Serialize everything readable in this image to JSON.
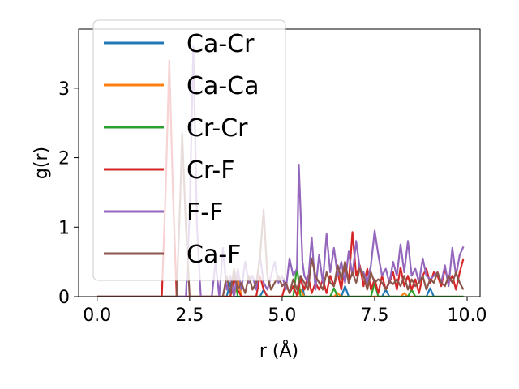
{
  "chart_data": {
    "type": "line",
    "xlabel": "r (Å)",
    "ylabel": "g(r)",
    "xlim": [
      -0.5,
      10.35
    ],
    "ylim": [
      0,
      3.85
    ],
    "xticks": [
      0.0,
      2.5,
      5.0,
      7.5,
      10.0
    ],
    "xtick_labels": [
      "0.0",
      "2.5",
      "5.0",
      "7.5",
      "10.0"
    ],
    "yticks": [
      0,
      1,
      2,
      3
    ],
    "ytick_labels": [
      "0",
      "1",
      "2",
      "3"
    ],
    "grid": false,
    "legend_position": "upper-left",
    "series": [
      {
        "name": "Ca-Cr",
        "color": "#1f77b4",
        "points": [
          [
            0,
            0
          ],
          [
            3.5,
            0
          ],
          [
            3.6,
            0.2
          ],
          [
            3.7,
            0
          ],
          [
            4.4,
            0
          ],
          [
            4.5,
            0.1
          ],
          [
            4.6,
            0
          ],
          [
            5.4,
            0
          ],
          [
            5.5,
            0.3
          ],
          [
            5.6,
            0
          ],
          [
            6.6,
            0
          ],
          [
            6.7,
            0.15
          ],
          [
            6.8,
            0
          ],
          [
            7.7,
            0
          ],
          [
            7.8,
            0.1
          ],
          [
            7.9,
            0
          ],
          [
            8.9,
            0
          ],
          [
            9.0,
            0.12
          ],
          [
            9.1,
            0
          ],
          [
            9.9,
            0
          ]
        ]
      },
      {
        "name": "Ca-Ca",
        "color": "#ff7f0e",
        "points": [
          [
            0,
            0
          ],
          [
            3.7,
            0
          ],
          [
            3.8,
            0.3
          ],
          [
            3.9,
            0
          ],
          [
            5.4,
            0
          ],
          [
            5.5,
            0.1
          ],
          [
            5.6,
            0
          ],
          [
            6.4,
            0
          ],
          [
            6.5,
            0.05
          ],
          [
            6.6,
            0
          ],
          [
            8.2,
            0
          ],
          [
            8.3,
            0.05
          ],
          [
            8.4,
            0
          ],
          [
            9.9,
            0
          ]
        ]
      },
      {
        "name": "Cr-Cr",
        "color": "#2ca02c",
        "points": [
          [
            0,
            0
          ],
          [
            3.6,
            0
          ],
          [
            3.7,
            0.35
          ],
          [
            3.8,
            0
          ],
          [
            5.3,
            0
          ],
          [
            5.4,
            0.42
          ],
          [
            5.5,
            0
          ],
          [
            6.3,
            0
          ],
          [
            6.4,
            0.12
          ],
          [
            6.5,
            0
          ],
          [
            7.4,
            0
          ],
          [
            7.5,
            0.2
          ],
          [
            7.6,
            0
          ],
          [
            8.4,
            0
          ],
          [
            8.5,
            0.1
          ],
          [
            8.6,
            0
          ],
          [
            9.9,
            0
          ]
        ]
      },
      {
        "name": "Cr-F",
        "color": "#d62728",
        "points": [
          [
            0,
            0
          ],
          [
            1.75,
            0
          ],
          [
            1.85,
            1.5
          ],
          [
            1.95,
            3.4
          ],
          [
            2.05,
            1.5
          ],
          [
            2.15,
            0
          ],
          [
            3.6,
            0
          ],
          [
            3.7,
            0.25
          ],
          [
            3.8,
            0.1
          ],
          [
            3.9,
            0
          ],
          [
            4.3,
            0
          ],
          [
            4.4,
            0.3
          ],
          [
            4.5,
            0.1
          ],
          [
            4.6,
            0
          ],
          [
            5.0,
            0
          ],
          [
            5.1,
            0.2
          ],
          [
            5.2,
            0.05
          ],
          [
            5.3,
            0.15
          ],
          [
            5.4,
            0.02
          ],
          [
            5.5,
            0.25
          ],
          [
            5.6,
            0.1
          ],
          [
            5.7,
            0.3
          ],
          [
            5.8,
            0.05
          ],
          [
            5.9,
            0.2
          ],
          [
            6.0,
            0.1
          ],
          [
            6.1,
            0.25
          ],
          [
            6.2,
            0.05
          ],
          [
            6.3,
            0.3
          ],
          [
            6.4,
            0.15
          ],
          [
            6.5,
            0.35
          ],
          [
            6.6,
            0.1
          ],
          [
            6.7,
            0.5
          ],
          [
            6.8,
            0.2
          ],
          [
            6.9,
            0.93
          ],
          [
            7.0,
            0.3
          ],
          [
            7.1,
            0.45
          ],
          [
            7.2,
            0.15
          ],
          [
            7.3,
            0.4
          ],
          [
            7.4,
            0.1
          ],
          [
            7.5,
            0.25
          ],
          [
            7.6,
            0.05
          ],
          [
            7.7,
            0.3
          ],
          [
            7.8,
            0.1
          ],
          [
            7.9,
            0.2
          ],
          [
            8.0,
            0.35
          ],
          [
            8.1,
            0.1
          ],
          [
            8.2,
            0.42
          ],
          [
            8.3,
            0.15
          ],
          [
            8.4,
            0.3
          ],
          [
            8.5,
            0.1
          ],
          [
            8.6,
            0.25
          ],
          [
            8.7,
            0.05
          ],
          [
            8.8,
            0.3
          ],
          [
            8.9,
            0.4
          ],
          [
            9.0,
            0.2
          ],
          [
            9.1,
            0.35
          ],
          [
            9.2,
            0.3
          ],
          [
            9.3,
            0.15
          ],
          [
            9.4,
            0.4
          ],
          [
            9.5,
            0.2
          ],
          [
            9.6,
            0.3
          ],
          [
            9.7,
            0.1
          ],
          [
            9.8,
            0.35
          ],
          [
            9.9,
            0.55
          ]
        ]
      },
      {
        "name": "F-F",
        "color": "#9467bd",
        "points": [
          [
            0,
            0
          ],
          [
            2.4,
            0
          ],
          [
            2.5,
            1.2
          ],
          [
            2.6,
            3.6
          ],
          [
            2.7,
            1.0
          ],
          [
            2.8,
            0
          ],
          [
            3.1,
            0
          ],
          [
            3.2,
            0.5
          ],
          [
            3.3,
            0
          ],
          [
            3.4,
            0.7
          ],
          [
            3.5,
            0.1
          ],
          [
            3.6,
            0.3
          ],
          [
            3.7,
            0
          ],
          [
            3.8,
            0.4
          ],
          [
            3.9,
            0.1
          ],
          [
            4.0,
            0.5
          ],
          [
            4.1,
            0.2
          ],
          [
            4.2,
            0.3
          ],
          [
            4.3,
            0.1
          ],
          [
            4.4,
            0.6
          ],
          [
            4.5,
            0.2
          ],
          [
            4.6,
            0.1
          ],
          [
            4.7,
            0.3
          ],
          [
            4.8,
            0.5
          ],
          [
            4.9,
            0.2
          ],
          [
            5.0,
            0.3
          ],
          [
            5.1,
            0.1
          ],
          [
            5.2,
            0.55
          ],
          [
            5.3,
            0.3
          ],
          [
            5.4,
            0.4
          ],
          [
            5.45,
            1.9
          ],
          [
            5.55,
            0.5
          ],
          [
            5.6,
            0.3
          ],
          [
            5.7,
            0.2
          ],
          [
            5.8,
            0.85
          ],
          [
            5.9,
            0.1
          ],
          [
            6.0,
            0.6
          ],
          [
            6.1,
            0.2
          ],
          [
            6.2,
            0.9
          ],
          [
            6.3,
            0.35
          ],
          [
            6.4,
            0.7
          ],
          [
            6.5,
            0.3
          ],
          [
            6.6,
            0.5
          ],
          [
            6.7,
            0.2
          ],
          [
            6.8,
            0.65
          ],
          [
            6.9,
            0.3
          ],
          [
            7.0,
            0.8
          ],
          [
            7.1,
            0.4
          ],
          [
            7.2,
            0.35
          ],
          [
            7.3,
            0.2
          ],
          [
            7.4,
            0.45
          ],
          [
            7.5,
            0.95
          ],
          [
            7.6,
            0.6
          ],
          [
            7.7,
            0.3
          ],
          [
            7.8,
            0.4
          ],
          [
            7.9,
            0.2
          ],
          [
            8.0,
            0.5
          ],
          [
            8.1,
            0.3
          ],
          [
            8.2,
            0.75
          ],
          [
            8.3,
            0.35
          ],
          [
            8.4,
            0.8
          ],
          [
            8.5,
            0.3
          ],
          [
            8.6,
            0.4
          ],
          [
            8.7,
            0.2
          ],
          [
            8.8,
            0.55
          ],
          [
            8.9,
            0.3
          ],
          [
            9.0,
            0.25
          ],
          [
            9.1,
            0.3
          ],
          [
            9.2,
            0.35
          ],
          [
            9.3,
            0.2
          ],
          [
            9.4,
            0.45
          ],
          [
            9.5,
            0.15
          ],
          [
            9.6,
            0.7
          ],
          [
            9.7,
            0.3
          ],
          [
            9.8,
            0.6
          ],
          [
            9.9,
            0.72
          ]
        ]
      },
      {
        "name": "Ca-F",
        "color": "#8c564b",
        "points": [
          [
            0,
            0
          ],
          [
            2.15,
            0
          ],
          [
            2.25,
            1.5
          ],
          [
            2.3,
            2.35
          ],
          [
            2.4,
            1.0
          ],
          [
            2.5,
            0
          ],
          [
            3.4,
            0
          ],
          [
            3.5,
            0.3
          ],
          [
            3.6,
            0.05
          ],
          [
            3.7,
            0.4
          ],
          [
            3.8,
            0.1
          ],
          [
            3.9,
            0.2
          ],
          [
            4.0,
            0.05
          ],
          [
            4.1,
            0.3
          ],
          [
            4.2,
            0.1
          ],
          [
            4.3,
            0.2
          ],
          [
            4.4,
            0.55
          ],
          [
            4.5,
            1.25
          ],
          [
            4.6,
            0.3
          ],
          [
            4.7,
            0.1
          ],
          [
            4.8,
            0.2
          ],
          [
            4.9,
            0.3
          ],
          [
            5.0,
            0.15
          ],
          [
            5.1,
            0.2
          ],
          [
            5.2,
            0.05
          ],
          [
            5.3,
            0.25
          ],
          [
            5.4,
            0.1
          ],
          [
            5.5,
            0.3
          ],
          [
            5.6,
            0.2
          ],
          [
            5.7,
            0.1
          ],
          [
            5.8,
            0.55
          ],
          [
            5.9,
            0.3
          ],
          [
            6.0,
            0.2
          ],
          [
            6.1,
            0.1
          ],
          [
            6.2,
            0.35
          ],
          [
            6.3,
            0.2
          ],
          [
            6.4,
            0.15
          ],
          [
            6.5,
            0.45
          ],
          [
            6.6,
            0.25
          ],
          [
            6.7,
            0.5
          ],
          [
            6.8,
            0.2
          ],
          [
            6.9,
            0.35
          ],
          [
            7.0,
            0.2
          ],
          [
            7.1,
            0.4
          ],
          [
            7.2,
            0.3
          ],
          [
            7.3,
            0.1
          ],
          [
            7.4,
            0.35
          ],
          [
            7.5,
            0.2
          ],
          [
            7.6,
            0.25
          ],
          [
            7.7,
            0.2
          ],
          [
            7.8,
            0.1
          ],
          [
            7.9,
            0.22
          ],
          [
            8.0,
            0.18
          ],
          [
            8.1,
            0.25
          ],
          [
            8.2,
            0.15
          ],
          [
            8.3,
            0.3
          ],
          [
            8.4,
            0.1
          ],
          [
            8.5,
            0.25
          ],
          [
            8.6,
            0.15
          ],
          [
            8.7,
            0.2
          ],
          [
            8.8,
            0.3
          ],
          [
            8.9,
            0.1
          ],
          [
            9.0,
            0.25
          ],
          [
            9.1,
            0.2
          ],
          [
            9.2,
            0.35
          ],
          [
            9.3,
            0.2
          ],
          [
            9.4,
            0.15
          ],
          [
            9.5,
            0.3
          ],
          [
            9.6,
            0.2
          ],
          [
            9.7,
            0.35
          ],
          [
            9.8,
            0.2
          ],
          [
            9.9,
            0.1
          ]
        ]
      }
    ]
  }
}
